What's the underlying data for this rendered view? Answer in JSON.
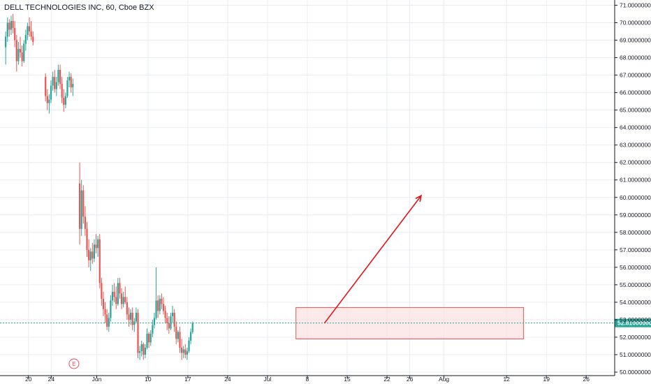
{
  "header": {
    "title": "DELL TECHNOLOGIES INC, 60, Cboe BZX"
  },
  "colors": {
    "up": "#26a69a",
    "down": "#ef5350",
    "grid": "#e9edf2",
    "zone_fill": "#fbe0e0",
    "zone_border": "#ef5350",
    "arrow": "#e0141d",
    "price_line": "#26a69a"
  },
  "earnings_marker": {
    "label": "E",
    "x": "2020-05-28"
  },
  "current_price": {
    "label": "52.81000000",
    "value": 52.81
  },
  "annotations": {
    "zone": {
      "x_start": "2020-07-06",
      "x_end": "2020-08-15",
      "y_low": 51.9,
      "y_high": 53.7
    },
    "arrow": {
      "x_start": "2020-07-11",
      "y_start": 52.8,
      "x_end": "2020-07-28",
      "y_end": 60.1
    }
  },
  "chart_data": {
    "type": "candlestick",
    "title": "DELL TECHNOLOGIES INC, 60, Cboe BZX",
    "xlabel": "",
    "ylabel": "",
    "ylim": [
      49.8,
      71.3
    ],
    "xlim": [
      "2020-05-15",
      "2020-08-31"
    ],
    "grid": true,
    "x_ticks": [
      {
        "label": "20",
        "x": "2020-05-20"
      },
      {
        "label": "24",
        "x": "2020-05-24"
      },
      {
        "label": "Jun",
        "x": "2020-06-01"
      },
      {
        "label": "10",
        "x": "2020-06-10"
      },
      {
        "label": "17",
        "x": "2020-06-17"
      },
      {
        "label": "24",
        "x": "2020-06-24"
      },
      {
        "label": "Jul",
        "x": "2020-07-01"
      },
      {
        "label": "8",
        "x": "2020-07-08"
      },
      {
        "label": "15",
        "x": "2020-07-15"
      },
      {
        "label": "22",
        "x": "2020-07-22"
      },
      {
        "label": "26",
        "x": "2020-07-26"
      },
      {
        "label": "Aug",
        "x": "2020-08-01"
      },
      {
        "label": "12",
        "x": "2020-08-12"
      },
      {
        "label": "19",
        "x": "2020-08-19"
      },
      {
        "label": "26",
        "x": "2020-08-26"
      }
    ],
    "y_ticks": [
      {
        "label": "71.00000000",
        "value": 71
      },
      {
        "label": "70.00000000",
        "value": 70
      },
      {
        "label": "69.00000000",
        "value": 69
      },
      {
        "label": "68.00000000",
        "value": 68
      },
      {
        "label": "67.00000000",
        "value": 67
      },
      {
        "label": "66.00000000",
        "value": 66
      },
      {
        "label": "65.00000000",
        "value": 65
      },
      {
        "label": "64.00000000",
        "value": 64
      },
      {
        "label": "63.00000000",
        "value": 63
      },
      {
        "label": "62.00000000",
        "value": 62
      },
      {
        "label": "61.00000000",
        "value": 61
      },
      {
        "label": "60.00000000",
        "value": 60
      },
      {
        "label": "59.00000000",
        "value": 59
      },
      {
        "label": "58.00000000",
        "value": 58
      },
      {
        "label": "57.00000000",
        "value": 57
      },
      {
        "label": "56.00000000",
        "value": 56
      },
      {
        "label": "55.00000000",
        "value": 55
      },
      {
        "label": "54.00000000",
        "value": 54
      },
      {
        "label": "53.00000000",
        "value": 53
      },
      {
        "label": "52.00000000",
        "value": 52
      },
      {
        "label": "51.00000000",
        "value": 51
      },
      {
        "label": "50.00000000",
        "value": 50
      }
    ],
    "series": [
      {
        "segments": [
          {
            "start": "2020-05-16",
            "candles": [
              [
                68.6,
                69.5,
                67.6,
                69.2
              ],
              [
                69.2,
                70.3,
                68.9,
                70.0
              ],
              [
                70.0,
                70.2,
                69.2,
                69.6
              ],
              [
                69.6,
                70.4,
                69.3,
                70.1
              ],
              [
                70.1,
                70.5,
                69.4,
                69.7
              ],
              [
                69.7,
                70.1,
                68.6,
                69.0
              ],
              [
                69.0,
                69.3,
                67.2,
                67.8
              ],
              [
                67.8,
                68.9,
                67.6,
                68.5
              ],
              [
                68.5,
                69.2,
                68.0,
                68.3
              ],
              [
                68.3,
                68.7,
                67.5,
                67.8
              ],
              [
                67.8,
                69.0,
                67.7,
                68.8
              ],
              [
                68.8,
                69.6,
                68.4,
                69.3
              ],
              [
                69.3,
                70.0,
                69.0,
                69.8
              ],
              [
                69.8,
                70.3,
                69.2,
                69.5
              ],
              [
                69.5,
                70.1,
                69.0,
                69.2
              ],
              [
                69.2,
                69.5,
                68.7,
                68.9
              ]
            ]
          },
          {
            "start": "2020-05-23",
            "candles": [
              [
                66.9,
                67.1,
                65.5,
                65.8
              ],
              [
                65.8,
                66.2,
                65.0,
                65.4
              ],
              [
                65.4,
                65.9,
                64.8,
                65.6
              ],
              [
                65.6,
                66.7,
                65.4,
                66.4
              ],
              [
                66.4,
                67.2,
                66.1,
                66.9
              ],
              [
                66.9,
                67.3,
                66.0,
                66.2
              ],
              [
                66.2,
                66.9,
                65.8,
                66.6
              ],
              [
                66.6,
                67.6,
                66.4,
                67.3
              ],
              [
                67.3,
                67.6,
                66.2,
                66.5
              ],
              [
                66.5,
                66.9,
                65.4,
                65.7
              ],
              [
                65.7,
                66.2,
                64.9,
                65.3
              ],
              [
                65.3,
                66.0,
                65.1,
                65.8
              ],
              [
                65.8,
                66.9,
                65.7,
                66.7
              ],
              [
                66.7,
                67.2,
                66.3,
                66.9
              ],
              [
                66.9,
                67.1,
                66.0,
                66.3
              ],
              [
                66.3,
                66.8,
                65.8,
                66.5
              ]
            ]
          },
          {
            "start": "2020-05-29",
            "candles": [
              [
                60.8,
                62.0,
                57.3,
                58.2
              ],
              [
                58.2,
                61.0,
                57.8,
                60.4
              ],
              [
                60.4,
                60.7,
                58.5,
                58.9
              ],
              [
                58.9,
                59.5,
                57.8,
                58.2
              ],
              [
                58.2,
                58.6,
                56.6,
                57.0
              ],
              [
                57.0,
                57.6,
                56.0,
                56.4
              ],
              [
                56.4,
                57.1,
                55.8,
                56.9
              ],
              [
                56.9,
                57.4,
                56.2,
                56.5
              ],
              [
                56.5,
                57.6,
                56.3,
                57.3
              ],
              [
                57.3,
                57.9,
                56.8,
                57.1
              ],
              [
                57.1,
                57.8,
                56.6,
                57.6
              ],
              [
                57.6,
                57.9,
                54.8,
                55.1
              ],
              [
                55.1,
                55.4,
                53.8,
                54.2
              ],
              [
                54.2,
                54.6,
                53.2,
                53.6
              ],
              [
                53.6,
                54.0,
                52.8,
                53.3
              ],
              [
                53.3,
                53.6,
                52.4,
                52.6
              ],
              [
                52.6,
                53.4,
                52.3,
                53.1
              ],
              [
                53.1,
                54.4,
                52.9,
                54.1
              ],
              [
                54.1,
                55.0,
                53.8,
                54.6
              ],
              [
                54.6,
                55.1,
                54.0,
                54.3
              ],
              [
                54.3,
                54.9,
                53.6,
                53.9
              ],
              [
                53.9,
                55.4,
                53.8,
                55.1
              ],
              [
                55.1,
                55.4,
                54.2,
                54.5
              ],
              [
                54.5,
                54.8,
                53.6,
                53.9
              ],
              [
                53.9,
                54.6,
                53.7,
                54.3
              ],
              [
                54.3,
                54.9,
                53.9,
                54.0
              ],
              [
                54.0,
                54.3,
                53.0,
                53.3
              ],
              [
                53.3,
                53.7,
                52.6,
                53.0
              ],
              [
                53.0,
                53.6,
                52.7,
                53.4
              ],
              [
                53.4,
                53.7,
                52.4,
                52.7
              ],
              [
                52.7,
                53.1,
                52.3,
                52.9
              ],
              [
                52.9,
                53.7,
                52.8,
                53.4
              ],
              [
                53.4,
                53.6,
                50.8,
                51.1
              ],
              [
                51.1,
                51.5,
                50.7,
                51.2
              ],
              [
                51.2,
                51.8,
                50.9,
                51.6
              ],
              [
                51.6,
                51.7,
                50.7,
                51.0
              ],
              [
                51.0,
                51.6,
                50.8,
                51.4
              ],
              [
                51.4,
                52.5,
                51.3,
                52.2
              ],
              [
                52.2,
                52.3,
                51.4,
                51.7
              ],
              [
                51.7,
                52.4,
                51.5,
                52.2
              ],
              [
                52.2,
                53.0,
                52.0,
                52.7
              ],
              [
                52.7,
                53.4,
                52.5,
                53.1
              ],
              [
                53.1,
                56.0,
                53.0,
                54.1
              ],
              [
                54.1,
                54.4,
                53.1,
                53.5
              ],
              [
                53.5,
                54.4,
                53.3,
                54.2
              ],
              [
                54.2,
                54.5,
                53.6,
                53.9
              ],
              [
                53.9,
                54.3,
                53.3,
                53.5
              ],
              [
                53.5,
                53.8,
                52.8,
                53.1
              ],
              [
                53.1,
                53.4,
                52.4,
                52.8
              ],
              [
                52.8,
                53.2,
                52.2,
                52.5
              ],
              [
                52.5,
                53.4,
                52.4,
                53.2
              ],
              [
                53.2,
                53.8,
                52.8,
                53.4
              ],
              [
                53.4,
                53.6,
                52.3,
                52.6
              ],
              [
                52.6,
                52.9,
                51.6,
                51.9
              ],
              [
                51.9,
                52.4,
                51.7,
                52.3
              ],
              [
                52.3,
                52.6,
                51.1,
                51.4
              ],
              [
                51.4,
                51.9,
                50.7,
                51.1
              ],
              [
                51.1,
                51.5,
                50.8,
                51.3
              ],
              [
                51.3,
                51.6,
                50.8,
                51.0
              ],
              [
                51.0,
                51.4,
                50.7,
                51.2
              ],
              [
                51.2,
                52.0,
                51.1,
                51.8
              ],
              [
                51.8,
                52.5,
                51.6,
                52.3
              ],
              [
                52.3,
                52.9,
                52.2,
                52.8
              ]
            ]
          }
        ]
      }
    ]
  }
}
